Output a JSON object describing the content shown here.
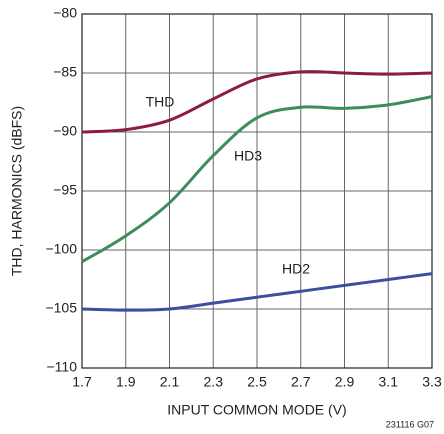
{
  "chart_data": {
    "type": "line",
    "xlabel": "INPUT COMMON MODE (V)",
    "ylabel": "THD, HARMONICS (dBFS)",
    "note": "231116 G07",
    "x": [
      1.7,
      1.9,
      2.1,
      2.3,
      2.5,
      2.7,
      2.9,
      3.1,
      3.3
    ],
    "xlim": [
      1.7,
      3.3
    ],
    "xticks": [
      1.7,
      1.9,
      2.1,
      2.3,
      2.5,
      2.7,
      2.9,
      3.1,
      3.3
    ],
    "ylim": [
      -110,
      -80
    ],
    "yticks": [
      {
        "value": -110,
        "label": "−110"
      },
      {
        "value": -105,
        "label": "−105"
      },
      {
        "value": -100,
        "label": "−100"
      },
      {
        "value": -95,
        "label": "−95"
      },
      {
        "value": -90,
        "label": "−90"
      },
      {
        "value": -85,
        "label": "−85"
      },
      {
        "value": -80,
        "label": "−80"
      }
    ],
    "grid": true,
    "series": [
      {
        "name": "THD",
        "color": "#8c1d40",
        "values": [
          -90,
          -89.8,
          -89,
          -87.2,
          -85.5,
          -84.9,
          -85,
          -85.1,
          -85
        ]
      },
      {
        "name": "HD3",
        "color": "#3d8c5c",
        "values": [
          -101,
          -98.8,
          -96,
          -92,
          -88.8,
          -87.9,
          -88,
          -87.7,
          -87
        ]
      },
      {
        "name": "HD2",
        "color": "#3b4ea0",
        "values": [
          -105,
          -105.1,
          -105,
          -104.5,
          -104,
          -103.5,
          -103,
          -102.5,
          -102
        ]
      }
    ]
  }
}
